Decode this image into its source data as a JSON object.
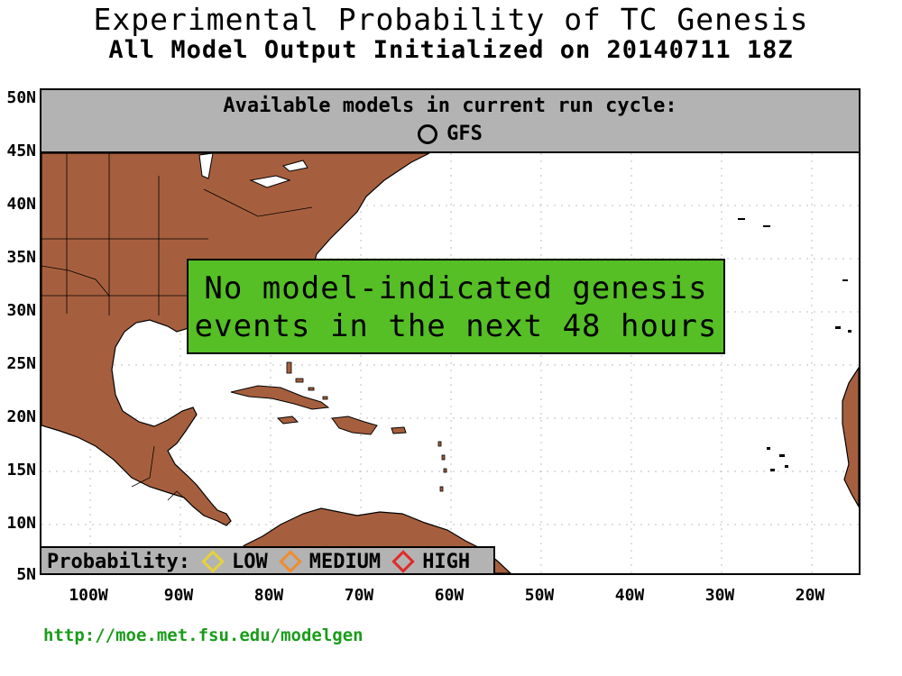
{
  "title": "Experimental Probability of TC Genesis",
  "subtitle": "All Model Output Initialized on 20140711 18Z",
  "available": {
    "heading": "Available models in current run cycle:",
    "model": "GFS"
  },
  "banner": {
    "line1": "No model-indicated genesis",
    "line2": "events in the next 48 hours"
  },
  "legend": {
    "label": "Probability:",
    "items": [
      {
        "label": "LOW",
        "color": "#e6d23c"
      },
      {
        "label": "MEDIUM",
        "color": "#f08c2c"
      },
      {
        "label": "HIGH",
        "color": "#e02a2a"
      }
    ]
  },
  "y_axis": [
    "50N",
    "45N",
    "40N",
    "35N",
    "30N",
    "25N",
    "20N",
    "15N",
    "10N",
    "5N"
  ],
  "x_axis": [
    "100W",
    "90W",
    "80W",
    "70W",
    "60W",
    "50W",
    "40W",
    "30W",
    "20W"
  ],
  "colors": {
    "land": "#a65f3e",
    "ocean": "#ffffff",
    "banner": "#55bf25",
    "panel": "#b3b3b3",
    "url": "#1a9c1a"
  },
  "url": "http://moe.met.fsu.edu/modelgen"
}
